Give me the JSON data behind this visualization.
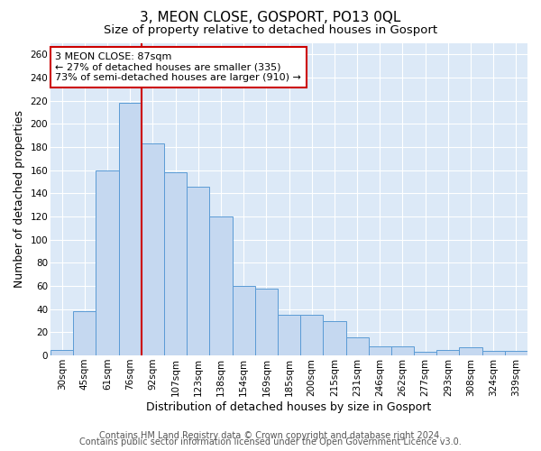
{
  "title": "3, MEON CLOSE, GOSPORT, PO13 0QL",
  "subtitle": "Size of property relative to detached houses in Gosport",
  "xlabel": "Distribution of detached houses by size in Gosport",
  "ylabel": "Number of detached properties",
  "bar_labels": [
    "30sqm",
    "45sqm",
    "61sqm",
    "76sqm",
    "92sqm",
    "107sqm",
    "123sqm",
    "138sqm",
    "154sqm",
    "169sqm",
    "185sqm",
    "200sqm",
    "215sqm",
    "231sqm",
    "246sqm",
    "262sqm",
    "277sqm",
    "293sqm",
    "308sqm",
    "324sqm",
    "339sqm"
  ],
  "bar_values": [
    5,
    38,
    160,
    218,
    183,
    158,
    146,
    120,
    60,
    58,
    35,
    35,
    30,
    16,
    8,
    8,
    3,
    5,
    7,
    4,
    4
  ],
  "bar_color": "#c5d8f0",
  "bar_edge_color": "#5b9bd5",
  "vline_x": 4,
  "vline_color": "#cc0000",
  "annotation_title": "3 MEON CLOSE: 87sqm",
  "annotation_line1": "← 27% of detached houses are smaller (335)",
  "annotation_line2": "73% of semi-detached houses are larger (910) →",
  "annotation_box_color": "#ffffff",
  "annotation_box_edge": "#cc0000",
  "ylim": [
    0,
    270
  ],
  "yticks": [
    0,
    20,
    40,
    60,
    80,
    100,
    120,
    140,
    160,
    180,
    200,
    220,
    240,
    260
  ],
  "footer1": "Contains HM Land Registry data © Crown copyright and database right 2024.",
  "footer2": "Contains public sector information licensed under the Open Government Licence v3.0.",
  "bg_color": "#ffffff",
  "plot_bg_color": "#dce9f7",
  "grid_color": "#ffffff",
  "title_fontsize": 11,
  "subtitle_fontsize": 9.5,
  "xlabel_fontsize": 9,
  "ylabel_fontsize": 9,
  "tick_fontsize": 7.5,
  "footer_fontsize": 7,
  "ann_fontsize": 8
}
